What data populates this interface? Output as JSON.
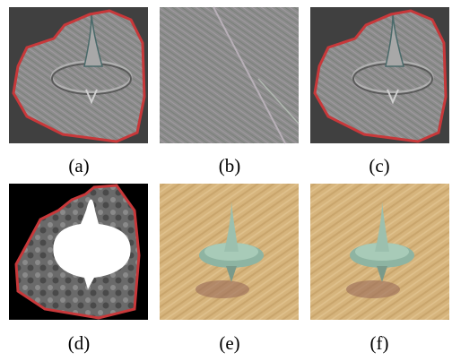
{
  "figure": {
    "captions": [
      "(a)",
      "(b)",
      "(c)",
      "(d)",
      "(e)",
      "(f)"
    ]
  }
}
